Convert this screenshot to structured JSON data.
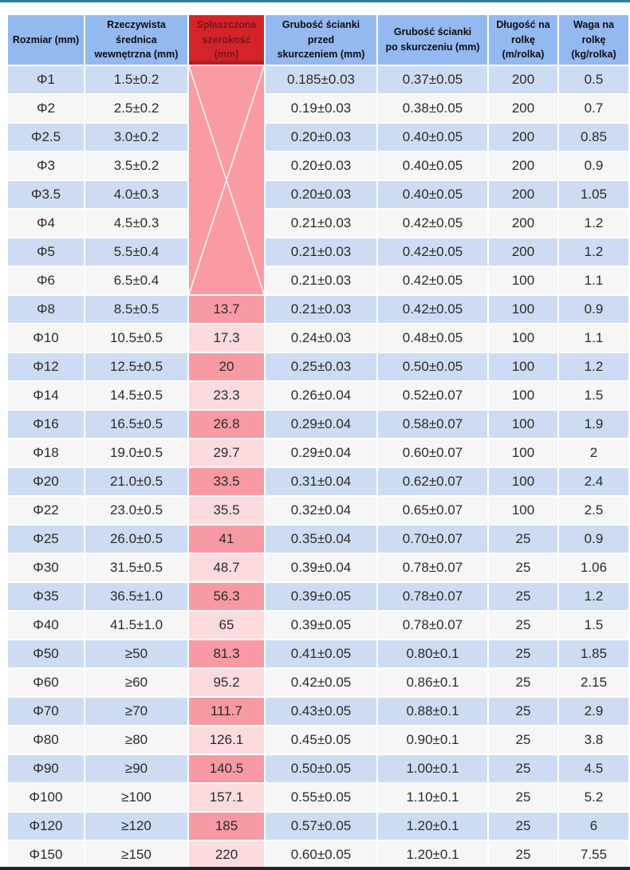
{
  "page": {
    "top_bar_color": "#2f7f98",
    "bottom_bar_color": "#1d2531",
    "background_color": "#ffffff"
  },
  "colors": {
    "header_blue": "#94b9f0",
    "header_red": "#d3242a",
    "header_red_text": "#7a161b",
    "row_blue": "#cddcf2",
    "row_white": "#f6f6f7",
    "pink_dark": "#f89aa3",
    "pink_light": "#fcdbdf",
    "merged_pink": "#fa9aa2",
    "grid_border": "#ffffff",
    "body_text": "#2b2b2b"
  },
  "table": {
    "columns": [
      {
        "key": "size",
        "label": "Rozmiar (mm)"
      },
      {
        "key": "diameter",
        "label": "Rzeczywista\nśrednica\nwewnętrzna (mm)"
      },
      {
        "key": "flat",
        "label": "Spłaszczona\nszerokość (mm)"
      },
      {
        "key": "before",
        "label": "Grubość ścianki\nprzed\nskurczeniem (mm)"
      },
      {
        "key": "after",
        "label": "Grubość ścianki\npo skurczeniu (mm)"
      },
      {
        "key": "length",
        "label": "Długość na\nrolkę (m/rolka)"
      },
      {
        "key": "weight",
        "label": "Waga na\nrolkę (kg/rolka)"
      }
    ],
    "merged_flat_cell": {
      "rows_spanned": 8,
      "marker_icon": "crossed-out-x-icon",
      "value": ""
    },
    "rows": [
      {
        "size": "Φ1",
        "diameter": "1.5±0.2",
        "flat": null,
        "before": "0.185±0.03",
        "after": "0.37±0.05",
        "length": "200",
        "weight": "0.5"
      },
      {
        "size": "Φ2",
        "diameter": "2.5±0.2",
        "flat": null,
        "before": "0.19±0.03",
        "after": "0.38±0.05",
        "length": "200",
        "weight": "0.7"
      },
      {
        "size": "Φ2.5",
        "diameter": "3.0±0.2",
        "flat": null,
        "before": "0.20±0.03",
        "after": "0.40±0.05",
        "length": "200",
        "weight": "0.85"
      },
      {
        "size": "Φ3",
        "diameter": "3.5±0.2",
        "flat": null,
        "before": "0.20±0.03",
        "after": "0.40±0.05",
        "length": "200",
        "weight": "0.9"
      },
      {
        "size": "Φ3.5",
        "diameter": "4.0±0.3",
        "flat": null,
        "before": "0.20±0.03",
        "after": "0.40±0.05",
        "length": "200",
        "weight": "1.05"
      },
      {
        "size": "Φ4",
        "diameter": "4.5±0.3",
        "flat": null,
        "before": "0.21±0.03",
        "after": "0.42±0.05",
        "length": "200",
        "weight": "1.2"
      },
      {
        "size": "Φ5",
        "diameter": "5.5±0.4",
        "flat": null,
        "before": "0.21±0.03",
        "after": "0.42±0.05",
        "length": "200",
        "weight": "1.2"
      },
      {
        "size": "Φ6",
        "diameter": "6.5±0.4",
        "flat": null,
        "before": "0.21±0.03",
        "after": "0.42±0.05",
        "length": "100",
        "weight": "1.1"
      },
      {
        "size": "Φ8",
        "diameter": "8.5±0.5",
        "flat": "13.7",
        "before": "0.21±0.03",
        "after": "0.42±0.05",
        "length": "100",
        "weight": "0.9"
      },
      {
        "size": "Φ10",
        "diameter": "10.5±0.5",
        "flat": "17.3",
        "before": "0.24±0.03",
        "after": "0.48±0.05",
        "length": "100",
        "weight": "1.1"
      },
      {
        "size": "Φ12",
        "diameter": "12.5±0.5",
        "flat": "20",
        "before": "0.25±0.03",
        "after": "0.50±0.05",
        "length": "100",
        "weight": "1.2"
      },
      {
        "size": "Φ14",
        "diameter": "14.5±0.5",
        "flat": "23.3",
        "before": "0.26±0.04",
        "after": "0.52±0.07",
        "length": "100",
        "weight": "1.5"
      },
      {
        "size": "Φ16",
        "diameter": "16.5±0.5",
        "flat": "26.8",
        "before": "0.29±0.04",
        "after": "0.58±0.07",
        "length": "100",
        "weight": "1.9"
      },
      {
        "size": "Φ18",
        "diameter": "19.0±0.5",
        "flat": "29.7",
        "before": "0.29±0.04",
        "after": "0.60±0.07",
        "length": "100",
        "weight": "2"
      },
      {
        "size": "Φ20",
        "diameter": "21.0±0.5",
        "flat": "33.5",
        "before": "0.31±0.04",
        "after": "0.62±0.07",
        "length": "100",
        "weight": "2.4"
      },
      {
        "size": "Φ22",
        "diameter": "23.0±0.5",
        "flat": "35.5",
        "before": "0.32±0.04",
        "after": "0.65±0.07",
        "length": "100",
        "weight": "2.5"
      },
      {
        "size": "Φ25",
        "diameter": "26.0±0.5",
        "flat": "41",
        "before": "0.35±0.04",
        "after": "0.70±0.07",
        "length": "25",
        "weight": "0.9"
      },
      {
        "size": "Φ30",
        "diameter": "31.5±0.5",
        "flat": "48.7",
        "before": "0.39±0.04",
        "after": "0.78±0.07",
        "length": "25",
        "weight": "1.06"
      },
      {
        "size": "Φ35",
        "diameter": "36.5±1.0",
        "flat": "56.3",
        "before": "0.39±0.05",
        "after": "0.78±0.07",
        "length": "25",
        "weight": "1.2"
      },
      {
        "size": "Φ40",
        "diameter": "41.5±1.0",
        "flat": "65",
        "before": "0.39±0.05",
        "after": "0.78±0.07",
        "length": "25",
        "weight": "1.5"
      },
      {
        "size": "Φ50",
        "diameter": "≥50",
        "flat": "81.3",
        "before": "0.41±0.05",
        "after": "0.80±0.1",
        "length": "25",
        "weight": "1.85"
      },
      {
        "size": "Φ60",
        "diameter": "≥60",
        "flat": "95.2",
        "before": "0.42±0.05",
        "after": "0.86±0.1",
        "length": "25",
        "weight": "2.15"
      },
      {
        "size": "Φ70",
        "diameter": "≥70",
        "flat": "111.7",
        "before": "0.43±0.05",
        "after": "0.88±0.1",
        "length": "25",
        "weight": "2.9"
      },
      {
        "size": "Φ80",
        "diameter": "≥80",
        "flat": "126.1",
        "before": "0.45±0.05",
        "after": "0.90±0.1",
        "length": "25",
        "weight": "3.8"
      },
      {
        "size": "Φ90",
        "diameter": "≥90",
        "flat": "140.5",
        "before": "0.50±0.05",
        "after": "1.00±0.1",
        "length": "25",
        "weight": "4.5"
      },
      {
        "size": "Φ100",
        "diameter": "≥100",
        "flat": "157.1",
        "before": "0.55±0.05",
        "after": "1.10±0.1",
        "length": "25",
        "weight": "5.2"
      },
      {
        "size": "Φ120",
        "diameter": "≥120",
        "flat": "185",
        "before": "0.57±0.05",
        "after": "1.20±0.1",
        "length": "25",
        "weight": "6"
      },
      {
        "size": "Φ150",
        "diameter": "≥150",
        "flat": "220",
        "before": "0.60±0.05",
        "after": "1.20±0.1",
        "length": "25",
        "weight": "7.55"
      }
    ]
  }
}
